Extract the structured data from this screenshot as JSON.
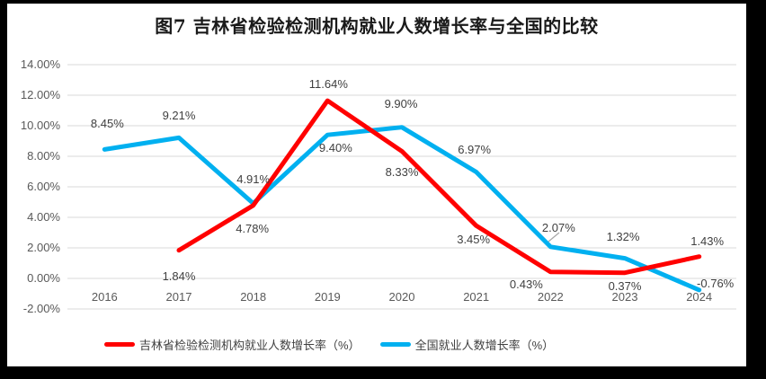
{
  "window": {
    "background": "#000000",
    "panel_background": "#FFFFFF"
  },
  "chart_data": {
    "type": "line",
    "title": "图7 吉林省检验检测机构就业人数增长率与全国的比较",
    "categories": [
      "2016",
      "2017",
      "2018",
      "2019",
      "2020",
      "2021",
      "2022",
      "2023",
      "2024"
    ],
    "y_axis": {
      "ticks": [
        "14.00%",
        "12.00%",
        "10.00%",
        "8.00%",
        "6.00%",
        "4.00%",
        "2.00%",
        "0.00%",
        "-2.00%"
      ],
      "max": 14,
      "min": -2,
      "step": 2,
      "unit": "percent"
    },
    "grid": true,
    "legend_position": "bottom",
    "series": [
      {
        "name": "吉林省检验检测机构就业人数增长率（%）",
        "color": "#FF0000",
        "values": [
          null,
          1.84,
          4.78,
          11.64,
          8.33,
          3.45,
          0.43,
          0.37,
          1.43
        ],
        "labels": [
          "",
          "1.84%",
          "4.78%",
          "11.64%",
          "8.33%",
          "3.45%",
          "0.43%",
          "0.37%",
          "1.43%"
        ]
      },
      {
        "name": "全国就业人数增长率（%）",
        "color": "#00B0F0",
        "values": [
          8.45,
          9.21,
          4.91,
          9.4,
          9.9,
          6.97,
          2.07,
          1.32,
          -0.76
        ],
        "labels": [
          "8.45%",
          "9.21%",
          "4.91%",
          "9.40%",
          "9.90%",
          "6.97%",
          "2.07%",
          "1.32%",
          "-0.76%"
        ]
      }
    ],
    "colors": {
      "grid": "#D9D9D9",
      "axis_text": "#595959",
      "data_label_text": "#3F3F3F",
      "leader_line": "#A6A6A6",
      "title_text": "#1A1A1A",
      "legend_text": "#404040"
    }
  }
}
